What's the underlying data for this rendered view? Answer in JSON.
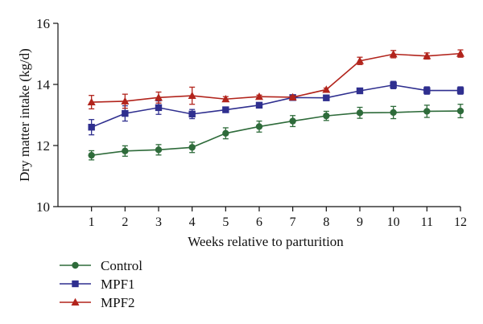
{
  "chart_data": {
    "type": "line",
    "title": "",
    "xlabel": "Weeks relative to parturition",
    "ylabel": "Dry matter intake (kg/d)",
    "x": [
      1,
      2,
      3,
      4,
      5,
      6,
      7,
      8,
      9,
      10,
      11,
      12
    ],
    "xlim": [
      0,
      12
    ],
    "ylim": [
      10,
      16
    ],
    "yticks": [
      10,
      12,
      14,
      16
    ],
    "grid": false,
    "legend_position": "bottom-left",
    "series": [
      {
        "name": "Control",
        "color": "#2e6b3a",
        "marker": "circle",
        "values": [
          11.68,
          11.82,
          11.86,
          11.94,
          12.4,
          12.62,
          12.8,
          12.97,
          13.07,
          13.08,
          13.12,
          13.13
        ],
        "errors": [
          0.15,
          0.17,
          0.17,
          0.17,
          0.18,
          0.18,
          0.18,
          0.15,
          0.18,
          0.2,
          0.2,
          0.22
        ]
      },
      {
        "name": "MPF1",
        "color": "#2f2f8f",
        "marker": "square",
        "values": [
          12.6,
          13.05,
          13.24,
          13.03,
          13.17,
          13.32,
          13.57,
          13.56,
          13.79,
          13.98,
          13.8,
          13.8
        ],
        "errors": [
          0.25,
          0.25,
          0.22,
          0.15,
          0.08,
          0.06,
          0.06,
          0.05,
          0.08,
          0.12,
          0.12,
          0.12
        ]
      },
      {
        "name": "MPF2",
        "color": "#b2241c",
        "marker": "triangle",
        "values": [
          13.42,
          13.45,
          13.57,
          13.63,
          13.52,
          13.6,
          13.58,
          13.83,
          14.77,
          14.99,
          14.93,
          15.01
        ],
        "errors": [
          0.22,
          0.23,
          0.18,
          0.28,
          0.08,
          0.05,
          0.05,
          0.05,
          0.12,
          0.12,
          0.1,
          0.12
        ]
      }
    ]
  }
}
